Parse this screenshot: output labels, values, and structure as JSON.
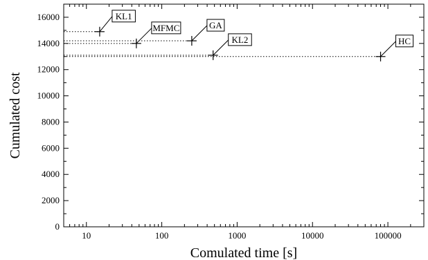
{
  "chart_data": {
    "type": "scatter",
    "xlabel": "Comulated time [s]",
    "ylabel": "Cumulated cost",
    "xscale": "log",
    "xlim": [
      5,
      300000
    ],
    "ylim": [
      0,
      17000
    ],
    "x_ticks": [
      10,
      100,
      1000,
      10000,
      100000
    ],
    "x_tick_labels": [
      "10",
      "100",
      "1000",
      "10000",
      "100000"
    ],
    "y_ticks": [
      0,
      2000,
      4000,
      6000,
      8000,
      10000,
      12000,
      14000,
      16000
    ],
    "y_tick_labels": [
      "0",
      "2000",
      "4000",
      "6000",
      "8000",
      "10000",
      "12000",
      "14000",
      "16000"
    ],
    "grid": false,
    "marker": "+",
    "points": [
      {
        "label": "KL1",
        "x": 15,
        "y": 14900
      },
      {
        "label": "MFMC",
        "x": 46,
        "y": 14000
      },
      {
        "label": "GA",
        "x": 250,
        "y": 14200
      },
      {
        "label": "KL2",
        "x": 480,
        "y": 13100
      },
      {
        "label": "HC",
        "x": 80000,
        "y": 13000
      }
    ],
    "reference_lines": "dotted horizontal line from the left axis to each point"
  }
}
